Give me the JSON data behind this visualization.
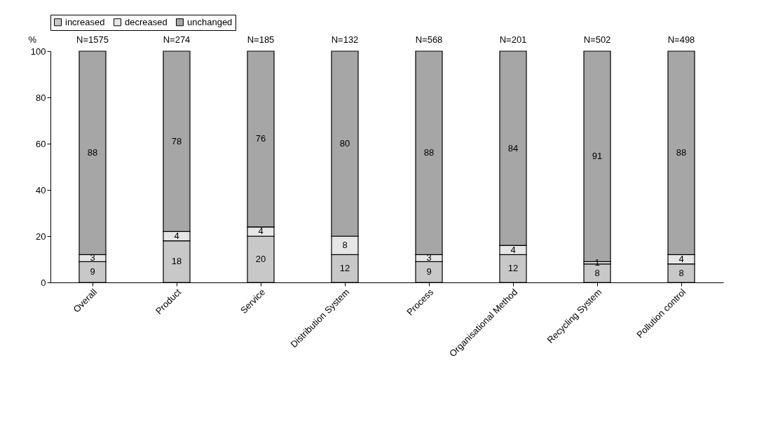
{
  "chart_data": {
    "type": "bar",
    "stacked": true,
    "ylabel": "%",
    "categories": [
      "Overall",
      "Product",
      "Service",
      "Distribution System",
      "Process",
      "Organisational Method",
      "Recycling System",
      "Pollution control"
    ],
    "series": [
      {
        "name": "increased",
        "color": "#c8c8c8",
        "values": [
          9,
          18,
          20,
          12,
          9,
          12,
          8,
          8
        ]
      },
      {
        "name": "decreased",
        "color": "#e6e6e6",
        "values": [
          3,
          4,
          4,
          8,
          3,
          4,
          1,
          4
        ]
      },
      {
        "name": "unchanged",
        "color": "#a6a6a6",
        "values": [
          88,
          78,
          76,
          80,
          88,
          84,
          91,
          88
        ]
      }
    ],
    "ylim": [
      0,
      100
    ],
    "yticks": [
      0,
      20,
      40,
      60,
      80,
      100
    ],
    "grid": false,
    "legend": "top",
    "data_labels": true,
    "annotations": [
      "N=1575",
      "N=274",
      "N=185",
      "N=132",
      "N=568",
      "N=201",
      "N=502",
      "N=498"
    ]
  }
}
